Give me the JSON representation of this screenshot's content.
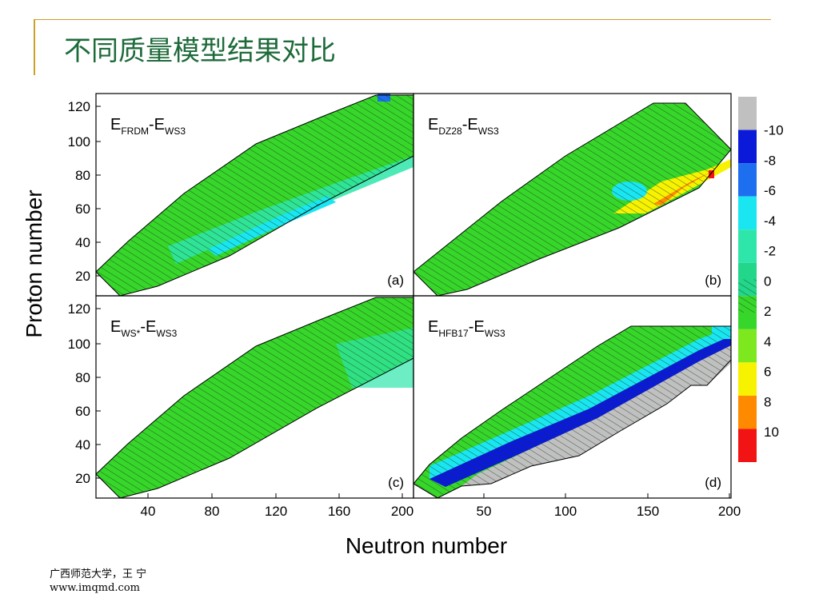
{
  "slide": {
    "title": "不同质量模型结果对比",
    "footer_lines": [
      "广西师范大学，王 宁",
      "www.imqmd.com"
    ]
  },
  "colors": {
    "accent_rule": "#c9a227",
    "title_text": "#1e6b3a",
    "hatch": "#1a3a1a"
  },
  "chart_data": {
    "type": "heatmap",
    "xlabel": "Neutron number",
    "ylabel": "Proton number",
    "panels": [
      {
        "id": "a",
        "tag": "(a)",
        "title": {
          "main": "E",
          "sub1": "FRDM",
          "mid": "-E",
          "sub2": "WS3"
        },
        "xlim": [
          5,
          200
        ],
        "ylim": [
          8,
          130
        ]
      },
      {
        "id": "b",
        "tag": "(b)",
        "title": {
          "main": "E",
          "sub1": "DZ28",
          "mid": "-E",
          "sub2": "WS3"
        },
        "xlim": [
          0,
          200
        ],
        "ylim": [
          8,
          130
        ]
      },
      {
        "id": "c",
        "tag": "(c)",
        "title": {
          "main": "E",
          "sub1": "WS*",
          "mid": "-E",
          "sub2": "WS3"
        },
        "xlim": [
          5,
          200
        ],
        "ylim": [
          8,
          130
        ]
      },
      {
        "id": "d",
        "tag": "(d)",
        "title": {
          "main": "E",
          "sub1": "HFB17",
          "mid": "-E",
          "sub2": "WS3"
        },
        "xlim": [
          0,
          200
        ],
        "ylim": [
          8,
          130
        ]
      }
    ],
    "left_x_ticks": [
      "40",
      "80",
      "120",
      "160",
      "200"
    ],
    "right_x_ticks": [
      "200",
      "50",
      "100",
      "150",
      "200"
    ],
    "y_ticks": [
      "120",
      "100",
      "80",
      "60",
      "40",
      "20"
    ],
    "colorbar": {
      "labels": [
        "-10",
        "-8",
        "-6",
        "-4",
        "-2",
        "0",
        "2",
        "4",
        "6",
        "8",
        "10"
      ],
      "bands": [
        {
          "range": "< -10",
          "color": "#c0c0c0"
        },
        {
          "range": "-10 to -8",
          "color": "#0a1ad8"
        },
        {
          "range": "-8 to -6",
          "color": "#1e6ef0"
        },
        {
          "range": "-6 to -4",
          "color": "#19e6f0"
        },
        {
          "range": "-4 to -2",
          "color": "#2ee6aa"
        },
        {
          "range": "-2 to 0",
          "color": "#22d68a"
        },
        {
          "range": "0 to 2",
          "color": "#37d62a"
        },
        {
          "range": "2 to 4",
          "color": "#7ee81f"
        },
        {
          "range": "4 to 6",
          "color": "#f7f200"
        },
        {
          "range": "6 to 8",
          "color": "#ff8a00"
        },
        {
          "range": "8 to 10",
          "color": "#f21414"
        }
      ]
    }
  }
}
